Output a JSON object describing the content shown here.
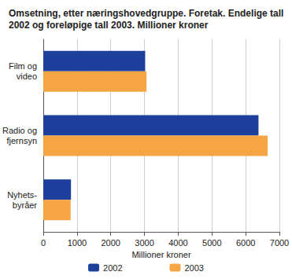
{
  "chart_data": {
    "type": "bar",
    "orientation": "horizontal",
    "title": "Omsetning, etter næringshovedgruppe. Foretak. Endelige tall 2002 og foreløpige tall 2003. Millioner kroner",
    "x_label": "Millioner kroner",
    "categories": [
      "Film og\nvideo",
      "Radio og\nfjernsyn",
      "Nyhets-\nbyråer"
    ],
    "series": [
      {
        "name": "2002",
        "color": "#1f3f9c",
        "values": [
          3020,
          6380,
          820
        ]
      },
      {
        "name": "2003",
        "color": "#f6a544",
        "values": [
          3060,
          6650,
          810
        ]
      }
    ],
    "xlim": [
      0,
      7000
    ],
    "xticks": [
      0,
      1000,
      2000,
      3000,
      4000,
      5000,
      6000,
      7000
    ],
    "grid": true,
    "legend": "bottom"
  }
}
